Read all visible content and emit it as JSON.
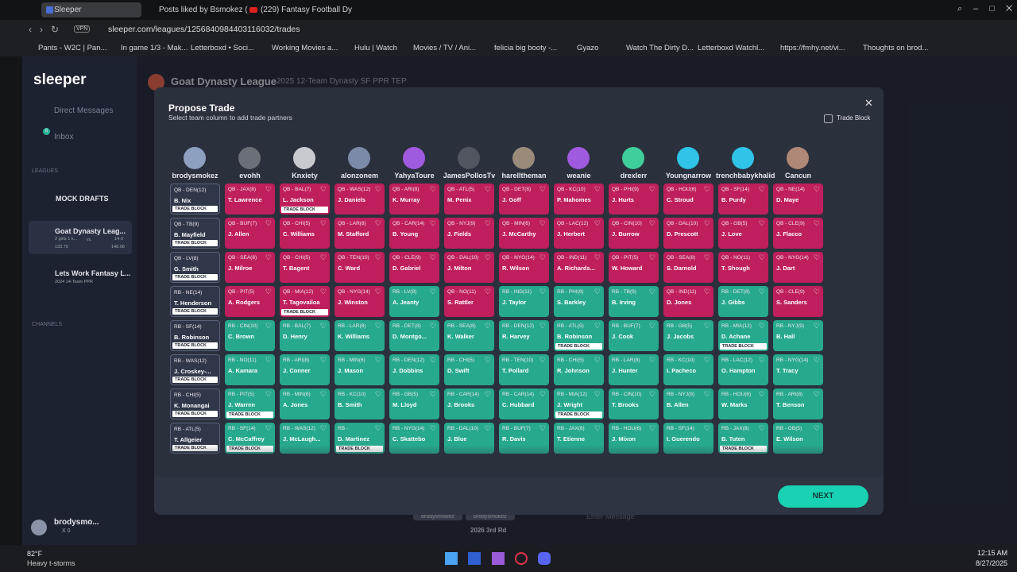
{
  "browser": {
    "tabs": [
      "Sleeper",
      "Posts liked by Bsmokez (",
      "(229) Fantasy Football Dy"
    ],
    "vpn": "VPN",
    "url": "sleeper.com/leagues/1256840984403116032/trades",
    "bookmarks": [
      "Pants - W2C | Pan...",
      "In game 1/3 - Mak...",
      "Letterboxd • Soci...",
      "Working Movies a...",
      "Hulu | Watch",
      "Movies / TV / Ani...",
      "felicia big booty -...",
      "Gyazo",
      "Watch The Dirty D...",
      "Letterboxd Watchl...",
      "https://fmhy.net/vi...",
      "Thoughts on brod..."
    ]
  },
  "sidebar": {
    "logo": "sleeper",
    "direct_messages": "Direct Messages",
    "inbox": "Inbox",
    "inbox_count": "6",
    "leagues_heading": "LEAGUES",
    "mock_drafts": "MOCK DRAFTS",
    "leagues": [
      {
        "name": "Goat Dynasty Leag...",
        "sub": "2 girls 1 k...",
        "vs": "vs.",
        "record": "14-3",
        "score_a": "133.75",
        "score_b": "148.06"
      },
      {
        "name": "Lets Work Fantasy L...",
        "sub": "2024 14-Team PPR"
      }
    ],
    "channels_heading": "CHANNELS",
    "user": "brodysmo...",
    "user_sub": "X 0"
  },
  "header": {
    "title": "Goat Dynasty League",
    "subtitle": "2025 12-Team Dynasty SF PPR TEP"
  },
  "behind": {
    "chips": [
      "brodysmokez",
      "brodysmokez"
    ],
    "pick": "2026 3rd Rd",
    "message_placeholder": "Enter Message"
  },
  "modal": {
    "title": "Propose Trade",
    "subtitle": "Select team column to add trade partners",
    "trade_block_toggle": "Trade Block",
    "next": "NEXT",
    "columns": [
      {
        "team": "brodysmokez",
        "cards": [
          {
            "pos": "QB - DEN(12)",
            "player": "B. Nix",
            "badge": "TRADE BLOCK"
          },
          {
            "pos": "QB - TB(9)",
            "player": "B. Mayfield",
            "badge": "TRADE BLOCK"
          },
          {
            "pos": "QB - LV(8)",
            "player": "G. Smith",
            "badge": "TRADE BLOCK"
          },
          {
            "pos": "RB - NE(14)",
            "player": "T. Henderson",
            "badge": "TRADE BLOCK"
          },
          {
            "pos": "RB - SF(14)",
            "player": "B. Robinson",
            "badge": "TRADE BLOCK"
          },
          {
            "pos": "RB - WAS(12)",
            "player": "J. Croskey-...",
            "badge": "TRADE BLOCK"
          },
          {
            "pos": "RB - CHI(5)",
            "player": "K. Monangai",
            "badge": "TRADE BLOCK"
          },
          {
            "pos": "RB - ATL(5)",
            "player": "T. Allgeier",
            "badge": "TRADE BLOCK"
          }
        ]
      },
      {
        "team": "evohh",
        "cards": [
          {
            "pos": "QB - JAX(8)",
            "player": "T. Lawrence"
          },
          {
            "pos": "QB - BUF(7)",
            "player": "J. Allen"
          },
          {
            "pos": "QB - SEA(8)",
            "player": "J. Milroe"
          },
          {
            "pos": "QB - PIT(5)",
            "player": "A. Rodgers"
          },
          {
            "pos": "RB - CIN(10)",
            "player": "C. Brown"
          },
          {
            "pos": "RB - NO(11)",
            "player": "A. Kamara"
          },
          {
            "pos": "RB - PIT(5)",
            "player": "J. Warren",
            "badge": "TRADE BLOCK"
          },
          {
            "pos": "RB - SF(14)",
            "player": "C. McCaffrey",
            "badge": "TRADE BLOCK"
          }
        ]
      },
      {
        "team": "Knxiety",
        "cards": [
          {
            "pos": "QB - BAL(7)",
            "player": "L. Jackson",
            "badge": "TRADE BLOCK"
          },
          {
            "pos": "QB - CHI(5)",
            "player": "C. Williams"
          },
          {
            "pos": "QB - CHI(5)",
            "player": "T. Bagent"
          },
          {
            "pos": "QB - MIA(12)",
            "player": "T. Tagovailoa",
            "badge": "TRADE BLOCK"
          },
          {
            "pos": "RB - BAL(7)",
            "player": "D. Henry"
          },
          {
            "pos": "RB - ARI(8)",
            "player": "J. Conner"
          },
          {
            "pos": "RB - MIN(6)",
            "player": "A. Jones"
          },
          {
            "pos": "RB - WAS(12)",
            "player": "J. McLaugh..."
          }
        ]
      },
      {
        "team": "alonzonem",
        "cards": [
          {
            "pos": "QB - WAS(12)",
            "player": "J. Daniels"
          },
          {
            "pos": "QB - LAR(8)",
            "player": "M. Stafford"
          },
          {
            "pos": "QB - TEN(10)",
            "player": "C. Ward"
          },
          {
            "pos": "QB - NYG(14)",
            "player": "J. Winston"
          },
          {
            "pos": "RB - LAR(8)",
            "player": "K. Williams"
          },
          {
            "pos": "RB - MIN(6)",
            "player": "J. Mason"
          },
          {
            "pos": "RB - KC(10)",
            "player": "B. Smith"
          },
          {
            "pos": "RB -",
            "player": "D. Martinez",
            "badge": "TRADE BLOCK"
          }
        ]
      },
      {
        "team": "YahyaToure",
        "cards": [
          {
            "pos": "QB - ARI(8)",
            "player": "K. Murray"
          },
          {
            "pos": "QB - CAR(14)",
            "player": "B. Young"
          },
          {
            "pos": "QB - CLE(9)",
            "player": "D. Gabriel"
          },
          {
            "pos": "RB - LV(8)",
            "player": "A. Jeanty"
          },
          {
            "pos": "RB - DET(8)",
            "player": "D. Montgo..."
          },
          {
            "pos": "RB - DEN(12)",
            "player": "J. Dobbins"
          },
          {
            "pos": "RB - GB(5)",
            "player": "M. Lloyd"
          },
          {
            "pos": "RB - NYG(14)",
            "player": "C. Skattebo"
          }
        ]
      },
      {
        "team": "JamesPollosTv",
        "cards": [
          {
            "pos": "QB - ATL(5)",
            "player": "M. Penix"
          },
          {
            "pos": "QB - NYJ(9)",
            "player": "J. Fields"
          },
          {
            "pos": "QB - DAL(10)",
            "player": "J. Milton"
          },
          {
            "pos": "QB - NO(11)",
            "player": "S. Rattler"
          },
          {
            "pos": "RB - SEA(8)",
            "player": "K. Walker"
          },
          {
            "pos": "RB - CHI(5)",
            "player": "D. Swift"
          },
          {
            "pos": "RB - CAR(14)",
            "player": "J. Brooks"
          },
          {
            "pos": "RB - DAL(10)",
            "player": "J. Blue"
          }
        ]
      },
      {
        "team": "harelltheman",
        "cards": [
          {
            "pos": "QB - DET(8)",
            "player": "J. Goff"
          },
          {
            "pos": "QB - MIN(6)",
            "player": "J. McCarthy"
          },
          {
            "pos": "QB - NYG(14)",
            "player": "R. Wilson"
          },
          {
            "pos": "RB - IND(11)",
            "player": "J. Taylor"
          },
          {
            "pos": "RB - DEN(12)",
            "player": "R. Harvey"
          },
          {
            "pos": "RB - TEN(10)",
            "player": "T. Pollard"
          },
          {
            "pos": "RB - CAR(14)",
            "player": "C. Hubbard"
          },
          {
            "pos": "RB - BUF(7)",
            "player": "R. Davis"
          }
        ]
      },
      {
        "team": "weanie",
        "cards": [
          {
            "pos": "QB - KC(10)",
            "player": "P. Mahomes"
          },
          {
            "pos": "QB - LAC(12)",
            "player": "J. Herbert"
          },
          {
            "pos": "QB - IND(11)",
            "player": "A. Richards..."
          },
          {
            "pos": "RB - PHI(9)",
            "player": "S. Barkley"
          },
          {
            "pos": "RB - ATL(5)",
            "player": "B. Robinson",
            "badge": "TRADE BLOCK"
          },
          {
            "pos": "RB - CHI(5)",
            "player": "R. Johnson"
          },
          {
            "pos": "RB - MIA(12)",
            "player": "J. Wright",
            "badge": "TRADE BLOCK"
          },
          {
            "pos": "RB - JAX(8)",
            "player": "T. Etienne"
          }
        ]
      },
      {
        "team": "drexlerr",
        "cards": [
          {
            "pos": "QB - PHI(9)",
            "player": "J. Hurts"
          },
          {
            "pos": "QB - CIN(10)",
            "player": "J. Burrow"
          },
          {
            "pos": "QB - PIT(5)",
            "player": "W. Howard"
          },
          {
            "pos": "RB - TB(9)",
            "player": "B. Irving"
          },
          {
            "pos": "RB - BUF(7)",
            "player": "J. Cook"
          },
          {
            "pos": "RB - LAR(8)",
            "player": "J. Hunter"
          },
          {
            "pos": "RB - CIN(10)",
            "player": "T. Brooks"
          },
          {
            "pos": "RB - HOU(6)",
            "player": "J. Mixon"
          }
        ]
      },
      {
        "team": "Youngnarrow",
        "cards": [
          {
            "pos": "QB - HOU(6)",
            "player": "C. Stroud"
          },
          {
            "pos": "QB - DAL(10)",
            "player": "D. Prescott"
          },
          {
            "pos": "QB - SEA(8)",
            "player": "S. Darnold"
          },
          {
            "pos": "QB - IND(11)",
            "player": "D. Jones"
          },
          {
            "pos": "RB - GB(5)",
            "player": "J. Jacobs"
          },
          {
            "pos": "RB - KC(10)",
            "player": "I. Pacheco"
          },
          {
            "pos": "RB - NYJ(9)",
            "player": "B. Allen"
          },
          {
            "pos": "RB - SF(14)",
            "player": "I. Guerendo"
          }
        ]
      },
      {
        "team": "trenchbabykhalid",
        "cards": [
          {
            "pos": "QB - SF(14)",
            "player": "B. Purdy"
          },
          {
            "pos": "QB - GB(5)",
            "player": "J. Love"
          },
          {
            "pos": "QB - NO(11)",
            "player": "T. Shough"
          },
          {
            "pos": "RB - DET(8)",
            "player": "J. Gibbs"
          },
          {
            "pos": "RB - MIA(12)",
            "player": "D. Achane",
            "badge": "TRADE BLOCK"
          },
          {
            "pos": "RB - LAC(12)",
            "player": "O. Hampton"
          },
          {
            "pos": "RB - HOU(6)",
            "player": "W. Marks"
          },
          {
            "pos": "RB - JAX(8)",
            "player": "B. Tuten",
            "badge": "TRADE BLOCK"
          }
        ]
      },
      {
        "team": "Cancun",
        "cards": [
          {
            "pos": "QB - NE(14)",
            "player": "D. Maye"
          },
          {
            "pos": "QB - CLE(9)",
            "player": "J. Flacco"
          },
          {
            "pos": "QB - NYG(14)",
            "player": "J. Dart"
          },
          {
            "pos": "QB - CLE(9)",
            "player": "S. Sanders"
          },
          {
            "pos": "RB - NYJ(9)",
            "player": "B. Hall"
          },
          {
            "pos": "RB - NYG(14)",
            "player": "T. Tracy"
          },
          {
            "pos": "RB - ARI(8)",
            "player": "T. Benson"
          },
          {
            "pos": "RB - GB(5)",
            "player": "E. Wilson"
          }
        ]
      }
    ]
  },
  "taskbar": {
    "temp": "82°F",
    "weather": "Heavy t-storms",
    "time": "12:15 AM",
    "date": "8/27/2025"
  }
}
